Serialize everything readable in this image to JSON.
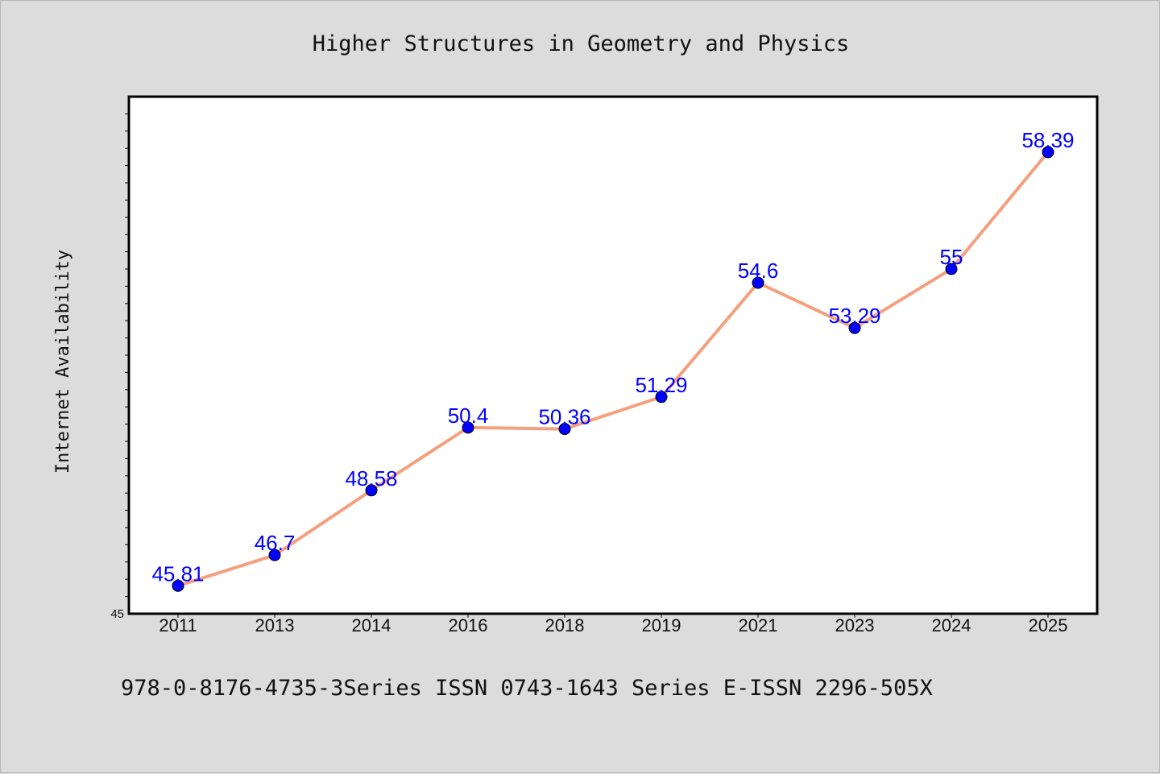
{
  "chart_data": {
    "type": "line",
    "title": "Higher Structures in Geometry and Physics",
    "xlabel": "",
    "ylabel": "Internet Availability",
    "categories": [
      "2011",
      "2013",
      "2014",
      "2016",
      "2018",
      "2019",
      "2021",
      "2023",
      "2024",
      "2025"
    ],
    "series": [
      {
        "values": [
          45.81,
          46.7,
          48.58,
          50.4,
          50.36,
          51.29,
          54.6,
          53.29,
          55,
          58.39
        ],
        "labels": [
          "45.81",
          "46.7",
          "48.58",
          "50.4",
          "50.36",
          "51.29",
          "54.6",
          "53.29",
          "55",
          "58.39"
        ]
      }
    ],
    "ylim": [
      45,
      60
    ],
    "y_tick_labels": [
      "45"
    ],
    "grid": false,
    "line_color": "#f4a07f",
    "marker_color": "#0000ff",
    "label_color": "#0000ff"
  },
  "footer": {
    "text": "978-0-8176-4735-3Series ISSN 0743-1643 Series E-ISSN 2296-505X"
  }
}
